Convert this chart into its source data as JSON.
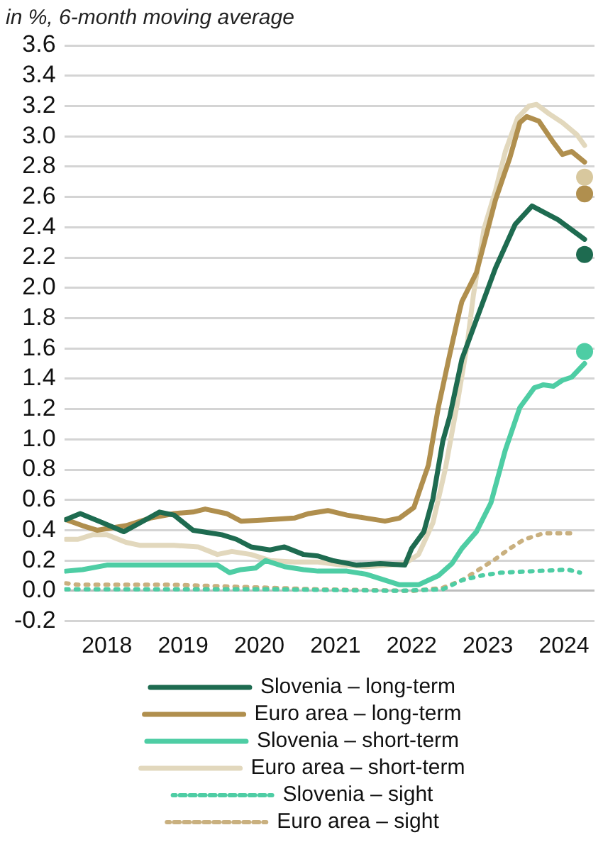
{
  "chart_data": {
    "type": "line",
    "title": "in %, 6-month moving average",
    "xlim": [
      2017.94,
      2024.9
    ],
    "xticks": [
      {
        "value": 2018.5,
        "label": "2018"
      },
      {
        "value": 2019.5,
        "label": "2019"
      },
      {
        "value": 2020.5,
        "label": "2020"
      },
      {
        "value": 2021.5,
        "label": "2021"
      },
      {
        "value": 2022.5,
        "label": "2022"
      },
      {
        "value": 2023.5,
        "label": "2023"
      },
      {
        "value": 2024.5,
        "label": "2024"
      }
    ],
    "ylim": [
      -0.2,
      3.6
    ],
    "yticks": [
      -0.2,
      {
        "value": 0,
        "label": "0.0"
      },
      0.2,
      0.4,
      0.6,
      0.8,
      {
        "value": 1,
        "label": "1.0"
      },
      1.2,
      1.4,
      1.6,
      1.8,
      {
        "value": 2,
        "label": "2.0"
      },
      2.2,
      2.4,
      2.6,
      2.8,
      {
        "value": 3,
        "label": "3.0"
      },
      3.2,
      3.4,
      3.6
    ],
    "grid": "y",
    "legend": "bottom",
    "series": [
      {
        "name": "Slovenia – long-term",
        "color": "#1e6b50",
        "x": [
          2017.96,
          2018.15,
          2018.44,
          2018.72,
          2018.94,
          2019.19,
          2019.38,
          2019.63,
          2020.01,
          2020.2,
          2020.39,
          2020.64,
          2020.83,
          2021.08,
          2021.27,
          2021.46,
          2021.78,
          2022.09,
          2022.41,
          2022.5,
          2022.66,
          2022.78,
          2022.91,
          2023.0,
          2023.16,
          2023.6,
          2023.86,
          2024.08,
          2024.42,
          2024.77
        ],
        "values": [
          0.47,
          0.51,
          0.45,
          0.39,
          0.45,
          0.52,
          0.5,
          0.4,
          0.37,
          0.34,
          0.29,
          0.27,
          0.29,
          0.24,
          0.23,
          0.2,
          0.17,
          0.18,
          0.17,
          0.28,
          0.39,
          0.61,
          0.99,
          1.15,
          1.53,
          2.13,
          2.42,
          2.54,
          2.45,
          2.32
        ]
      },
      {
        "name": "Euro area – long-term",
        "color": "#b08f4e",
        "x": [
          2017.96,
          2018.18,
          2018.37,
          2018.75,
          2019.07,
          2019.38,
          2019.63,
          2019.79,
          2020.07,
          2020.26,
          2020.64,
          2020.96,
          2021.15,
          2021.4,
          2021.65,
          2021.9,
          2022.15,
          2022.34,
          2022.53,
          2022.59,
          2022.72,
          2022.85,
          2023.0,
          2023.13,
          2023.16,
          2023.35,
          2023.6,
          2023.79,
          2023.92,
          2024.01,
          2024.17,
          2024.36,
          2024.48,
          2024.6,
          2024.77
        ],
        "values": [
          0.47,
          0.43,
          0.4,
          0.43,
          0.48,
          0.51,
          0.52,
          0.54,
          0.51,
          0.46,
          0.47,
          0.48,
          0.51,
          0.53,
          0.5,
          0.48,
          0.46,
          0.48,
          0.55,
          0.64,
          0.83,
          1.21,
          1.56,
          1.85,
          1.91,
          2.1,
          2.58,
          2.86,
          3.09,
          3.13,
          3.1,
          2.96,
          2.88,
          2.9,
          2.83
        ]
      },
      {
        "name": "Slovenia – short-term",
        "color": "#4ecda4",
        "x": [
          2017.96,
          2018.18,
          2018.5,
          2018.75,
          2019.38,
          2019.95,
          2020.11,
          2020.26,
          2020.45,
          2020.58,
          2020.83,
          2021.08,
          2021.27,
          2021.65,
          2021.9,
          2022.15,
          2022.34,
          2022.59,
          2022.85,
          2023.03,
          2023.16,
          2023.35,
          2023.54,
          2023.73,
          2023.92,
          2024.11,
          2024.23,
          2024.36,
          2024.48,
          2024.6,
          2024.77
        ],
        "values": [
          0.13,
          0.14,
          0.17,
          0.17,
          0.17,
          0.17,
          0.12,
          0.14,
          0.15,
          0.2,
          0.16,
          0.14,
          0.13,
          0.13,
          0.11,
          0.07,
          0.04,
          0.04,
          0.1,
          0.18,
          0.28,
          0.39,
          0.58,
          0.93,
          1.21,
          1.34,
          1.36,
          1.35,
          1.39,
          1.41,
          1.5
        ]
      },
      {
        "name": "Euro area – short-term",
        "color": "#e2d8bd",
        "x": [
          2017.96,
          2018.12,
          2018.31,
          2018.5,
          2018.75,
          2018.94,
          2019.38,
          2019.7,
          2019.95,
          2020.14,
          2020.39,
          2020.64,
          2020.96,
          2021.27,
          2021.59,
          2021.9,
          2022.22,
          2022.41,
          2022.59,
          2022.78,
          2022.94,
          2023.1,
          2023.23,
          2023.31,
          2023.45,
          2023.6,
          2023.73,
          2023.89,
          2024.04,
          2024.14,
          2024.3,
          2024.48,
          2024.67,
          2024.77
        ],
        "values": [
          0.34,
          0.34,
          0.37,
          0.37,
          0.32,
          0.3,
          0.3,
          0.29,
          0.24,
          0.26,
          0.24,
          0.2,
          0.19,
          0.19,
          0.17,
          0.16,
          0.17,
          0.18,
          0.24,
          0.45,
          0.8,
          1.24,
          1.63,
          1.95,
          2.39,
          2.64,
          2.9,
          3.12,
          3.2,
          3.21,
          3.15,
          3.09,
          3.01,
          2.94
        ]
      },
      {
        "name": "Slovenia – sight",
        "color": "#4ecda4",
        "line_style": "dotted",
        "x": [
          2017.96,
          2020.64,
          2022.34,
          2022.91,
          2023.16,
          2023.41,
          2023.67,
          2024.11,
          2024.55,
          2024.71
        ],
        "values": [
          0.01,
          0.01,
          0.0,
          0.01,
          0.07,
          0.1,
          0.12,
          0.13,
          0.14,
          0.12
        ]
      },
      {
        "name": "Euro area – sight",
        "color": "#c9b07f",
        "line_style": "dotted",
        "x": [
          2017.96,
          2018.12,
          2019.38,
          2020.64,
          2021.27,
          2022.53,
          2022.91,
          2023.16,
          2023.35,
          2023.6,
          2023.79,
          2023.98,
          2024.23,
          2024.67
        ],
        "values": [
          0.05,
          0.04,
          0.04,
          0.02,
          0.01,
          0.0,
          0.02,
          0.07,
          0.13,
          0.21,
          0.28,
          0.34,
          0.38,
          0.38
        ]
      },
      {
        "type": "scatter",
        "marker": "circle",
        "color": "#d8c89e",
        "x": [
          2024.77
        ],
        "values": [
          2.73
        ]
      },
      {
        "type": "scatter",
        "marker": "circle",
        "color": "#b08f4e",
        "x": [
          2024.77
        ],
        "values": [
          2.62
        ]
      },
      {
        "type": "scatter",
        "marker": "circle",
        "color": "#1e6b50",
        "x": [
          2024.77
        ],
        "values": [
          2.22
        ]
      },
      {
        "type": "scatter",
        "marker": "circle",
        "color": "#4ecda4",
        "x": [
          2024.77
        ],
        "values": [
          1.58
        ]
      }
    ]
  }
}
